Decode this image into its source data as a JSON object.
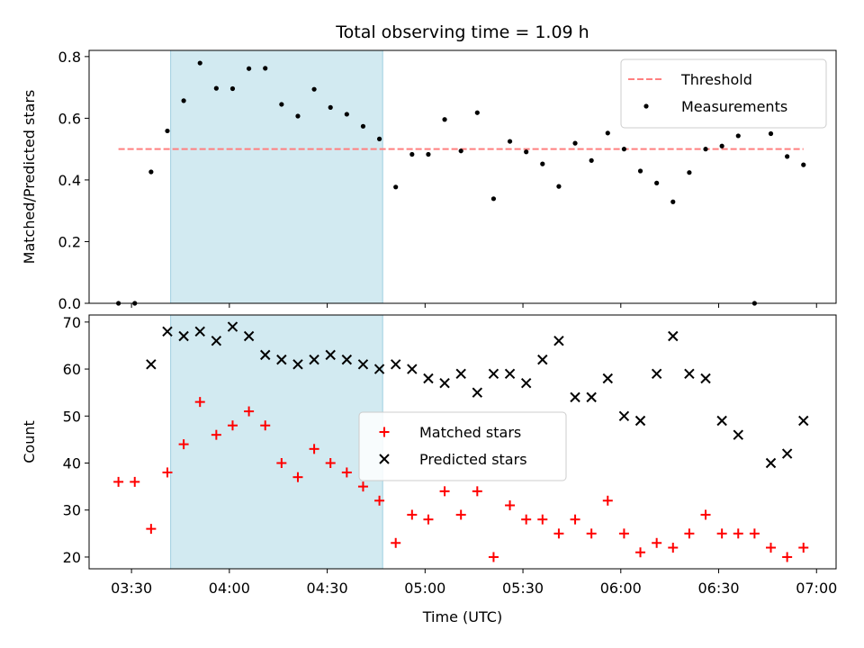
{
  "chart_data": {
    "title": "Total observing time = 1.09 h",
    "xlabel": "Time (UTC)",
    "x_ticks": [
      "03:30",
      "04:00",
      "04:30",
      "05:00",
      "05:30",
      "06:00",
      "06:30",
      "07:00"
    ],
    "x_tick_minutes": [
      210,
      240,
      270,
      300,
      330,
      360,
      390,
      420
    ],
    "xlim_minutes": [
      197,
      426
    ],
    "shaded_region_minutes": [
      222,
      287
    ],
    "shaded_color": "#add8e6",
    "times_minutes": [
      206,
      211,
      216,
      221,
      226,
      231,
      236,
      241,
      246,
      251,
      256,
      261,
      266,
      271,
      276,
      281,
      286,
      291,
      296,
      301,
      306,
      311,
      316,
      321,
      326,
      331,
      336,
      341,
      346,
      351,
      356,
      361,
      366,
      371,
      376,
      381,
      386,
      391,
      396,
      401,
      406,
      411,
      416
    ],
    "panels": [
      {
        "type": "scatter",
        "ylabel": "Matched/Predicted stars",
        "ylim": [
          0,
          0.82
        ],
        "y_ticks": [
          "0.0",
          "0.2",
          "0.4",
          "0.6",
          "0.8"
        ],
        "y_tick_values": [
          0,
          0.2,
          0.4,
          0.6,
          0.8
        ],
        "legend_position": "upper right",
        "threshold": {
          "name": "Threshold",
          "value": 0.5,
          "x_range_minutes": [
            206,
            416
          ],
          "color": "#ff7f7f"
        },
        "series": [
          {
            "name": "Measurements",
            "marker": "dot",
            "color": "#000000",
            "values": [
              0.0,
              0.0,
              0.426,
              0.559,
              0.657,
              0.779,
              0.697,
              0.696,
              0.761,
              0.762,
              0.645,
              0.607,
              0.694,
              0.635,
              0.613,
              0.574,
              0.533,
              0.377,
              0.483,
              0.483,
              0.596,
              0.494,
              0.618,
              0.339,
              0.525,
              0.491,
              0.452,
              0.379,
              0.519,
              0.463,
              0.552,
              0.5,
              0.429,
              0.39,
              0.329,
              0.424,
              0.5,
              0.51,
              0.543,
              0.0,
              0.55,
              0.476,
              0.449
            ]
          }
        ]
      },
      {
        "type": "scatter",
        "ylabel": "Count",
        "ylim": [
          17.5,
          71.5
        ],
        "y_ticks": [
          "20",
          "30",
          "40",
          "50",
          "60",
          "70"
        ],
        "y_tick_values": [
          20,
          30,
          40,
          50,
          60,
          70
        ],
        "legend_position": "center",
        "series": [
          {
            "name": "Matched stars",
            "marker": "plus",
            "color": "#ff0000",
            "values": [
              36,
              36,
              26,
              38,
              44,
              53,
              46,
              48,
              51,
              48,
              40,
              37,
              43,
              40,
              38,
              35,
              32,
              23,
              29,
              28,
              34,
              29,
              34,
              20,
              31,
              28,
              28,
              25,
              28,
              25,
              32,
              25,
              21,
              23,
              22,
              25,
              29,
              25,
              25,
              25,
              22,
              20,
              22
            ]
          },
          {
            "name": "Predicted stars",
            "marker": "x",
            "color": "#000000",
            "values": [
              null,
              null,
              61,
              68,
              67,
              68,
              66,
              69,
              67,
              63,
              62,
              61,
              62,
              63,
              62,
              61,
              60,
              61,
              60,
              58,
              57,
              59,
              55,
              59,
              59,
              57,
              62,
              66,
              54,
              54,
              58,
              50,
              49,
              59,
              67,
              59,
              58,
              49,
              46,
              null,
              40,
              42,
              49
            ]
          }
        ]
      }
    ]
  }
}
